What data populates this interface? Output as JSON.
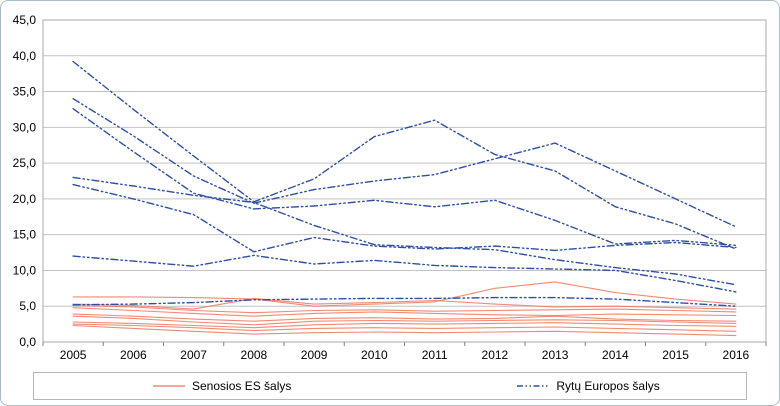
{
  "chart_data": {
    "type": "line",
    "x": [
      2005,
      2006,
      2007,
      2008,
      2009,
      2010,
      2011,
      2012,
      2013,
      2014,
      2015,
      2016
    ],
    "x_tick_labels": [
      "2005",
      "2006",
      "2007",
      "2008",
      "2009",
      "2010",
      "2011",
      "2012",
      "2013",
      "2014",
      "2015",
      "2016"
    ],
    "ylim": [
      0,
      45
    ],
    "ytick_step": 5,
    "y_tick_labels": [
      "0,0",
      "5,0",
      "10,0",
      "15,0",
      "20,0",
      "25,0",
      "30,0",
      "35,0",
      "40,0",
      "45,0"
    ],
    "grid": "horizontal",
    "legend_position": "bottom-box",
    "title": "",
    "xlabel": "",
    "ylabel": "",
    "legend": [
      {
        "label": "Senosios ES šalys",
        "style": "solid",
        "color": "#f0765a"
      },
      {
        "label": "Rytų Europos šalys",
        "style": "dash-dot-dot",
        "color": "#2e4fa3"
      }
    ],
    "series": [
      {
        "name": "senosios-es-1",
        "group": "Senosios ES šalys",
        "style": "solid",
        "values": [
          6.3,
          6.3,
          6.2,
          6.0,
          5.0,
          5.3,
          5.6,
          7.5,
          8.4,
          6.9,
          6.0,
          5.3
        ]
      },
      {
        "name": "senosios-es-2",
        "group": "Senosios ES šalys",
        "style": "solid",
        "values": [
          5.3,
          5.1,
          4.6,
          6.1,
          5.3,
          5.5,
          5.8,
          5.3,
          4.9,
          5.0,
          4.8,
          4.6
        ]
      },
      {
        "name": "senosios-es-3",
        "group": "Senosios ES šalys",
        "style": "solid",
        "values": [
          5.1,
          4.9,
          4.4,
          4.1,
          4.4,
          4.5,
          4.3,
          4.4,
          4.5,
          4.6,
          4.4,
          4.2
        ]
      },
      {
        "name": "senosios-es-4",
        "group": "Senosios ES šalys",
        "style": "solid",
        "values": [
          4.8,
          4.4,
          4.0,
          3.6,
          4.0,
          4.2,
          4.0,
          3.8,
          3.7,
          3.9,
          3.8,
          3.7
        ]
      },
      {
        "name": "senosios-es-5",
        "group": "Senosios ES šalys",
        "style": "solid",
        "values": [
          3.9,
          3.6,
          3.2,
          2.9,
          3.3,
          3.4,
          3.2,
          3.3,
          3.6,
          3.2,
          3.0,
          2.9
        ]
      },
      {
        "name": "senosios-es-6",
        "group": "Senosios ES šalys",
        "style": "solid",
        "values": [
          3.6,
          3.3,
          2.8,
          2.4,
          2.9,
          3.0,
          2.9,
          3.0,
          3.1,
          3.0,
          2.8,
          2.6
        ]
      },
      {
        "name": "senosios-es-7",
        "group": "Senosios ES šalys",
        "style": "solid",
        "values": [
          2.8,
          2.6,
          2.3,
          2.0,
          2.4,
          2.6,
          2.5,
          2.6,
          2.7,
          2.5,
          2.3,
          2.2
        ]
      },
      {
        "name": "senosios-es-8",
        "group": "Senosios ES šalys",
        "style": "solid",
        "values": [
          2.5,
          2.3,
          2.0,
          1.6,
          1.9,
          2.0,
          1.9,
          2.0,
          2.1,
          1.9,
          1.7,
          1.5
        ]
      },
      {
        "name": "senosios-es-9",
        "group": "Senosios ES šalys",
        "style": "solid",
        "values": [
          2.3,
          1.9,
          1.5,
          1.1,
          1.3,
          1.4,
          1.3,
          1.4,
          1.5,
          1.3,
          1.1,
          0.9
        ]
      },
      {
        "name": "rytu-europos-1",
        "group": "Rytų Europos šalys",
        "style": "dash-dot-dot",
        "values": [
          39.2,
          32.5,
          26.0,
          19.6,
          22.8,
          28.7,
          31.0,
          26.2,
          23.9,
          18.9,
          16.5,
          13.0
        ]
      },
      {
        "name": "rytu-europos-2",
        "group": "Rytų Europos šalys",
        "style": "dash-dot-dot",
        "values": [
          34.0,
          28.8,
          23.2,
          19.4,
          21.3,
          22.5,
          23.4,
          25.6,
          27.8,
          23.9,
          20.0,
          16.1
        ]
      },
      {
        "name": "rytu-europos-3",
        "group": "Rytų Europos šalys",
        "style": "dash-dot-dot",
        "values": [
          32.6,
          26.6,
          20.8,
          18.6,
          19.0,
          19.8,
          18.9,
          19.8,
          17.0,
          13.7,
          14.2,
          13.5
        ]
      },
      {
        "name": "rytu-europos-4",
        "group": "Rytų Europos šalys",
        "style": "dash-dot-dot",
        "values": [
          23.0,
          21.8,
          20.5,
          19.5,
          16.3,
          13.6,
          13.2,
          12.9,
          11.5,
          10.4,
          9.5,
          8.0
        ]
      },
      {
        "name": "rytu-europos-5",
        "group": "Rytų Europos šalys",
        "style": "dash-dot-dot",
        "values": [
          22.0,
          20.0,
          17.8,
          12.6,
          14.6,
          13.4,
          13.0,
          13.4,
          12.8,
          13.5,
          13.9,
          13.2
        ]
      },
      {
        "name": "rytu-europos-6",
        "group": "Rytų Europos šalys",
        "style": "dash-dot-dot",
        "values": [
          12.0,
          11.3,
          10.6,
          12.1,
          10.9,
          11.4,
          10.7,
          10.4,
          10.2,
          10.0,
          8.6,
          7.0
        ]
      },
      {
        "name": "rytu-europos-7",
        "group": "Rytų Europos šalys",
        "style": "dash-dot-dot",
        "values": [
          5.2,
          5.3,
          5.5,
          5.9,
          6.0,
          6.1,
          6.1,
          6.2,
          6.2,
          6.0,
          5.5,
          5.0
        ]
      }
    ],
    "colors": {
      "old_eu_line": "#f0765a",
      "eastern_line": "#2e4fa3",
      "gridline": "#c3c3c3",
      "plot_border": "#b7b7b7",
      "axis_text": "#000000",
      "outer_border": "#a9bcc9"
    }
  }
}
